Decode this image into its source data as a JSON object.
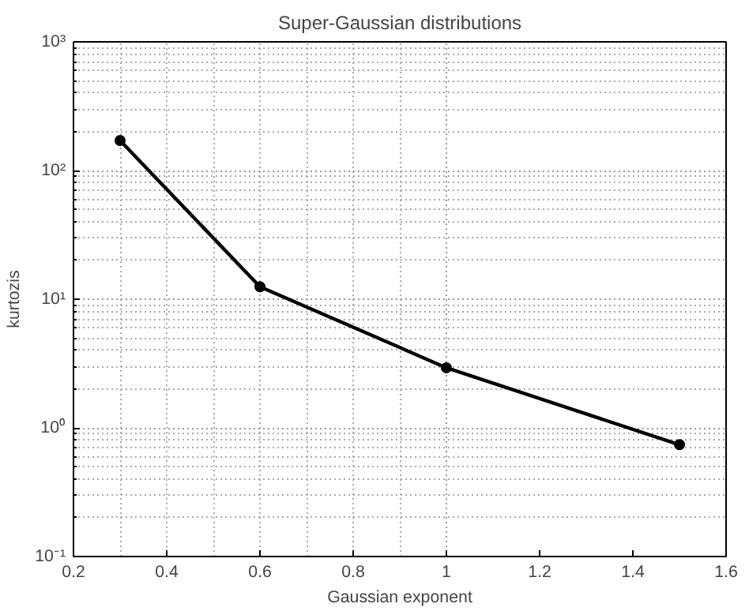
{
  "chart_data": {
    "type": "line",
    "title": "Super-Gaussian distributions",
    "xlabel": "Gaussian exponent",
    "ylabel": "kurtozis",
    "x": [
      0.3,
      0.6,
      1.0,
      1.5
    ],
    "series": [
      {
        "color": "#000000",
        "values": [
          171,
          12.5,
          2.93,
          0.74
        ]
      }
    ],
    "xlim": [
      0.2,
      1.6
    ],
    "xticks": [
      0.2,
      0.4,
      0.6,
      0.8,
      1,
      1.2,
      1.4,
      1.6
    ],
    "ylim": [
      0.1,
      1000
    ],
    "yticks": [
      {
        "value": 0.1,
        "label": "10⁻¹"
      },
      {
        "value": 1,
        "label": "10⁰"
      },
      {
        "value": 10,
        "label": "10¹"
      },
      {
        "value": 100,
        "label": "10²"
      },
      {
        "value": 1000,
        "label": "10³"
      }
    ],
    "log": "y",
    "grid": true,
    "marker": "circle",
    "line_style": "solid"
  }
}
